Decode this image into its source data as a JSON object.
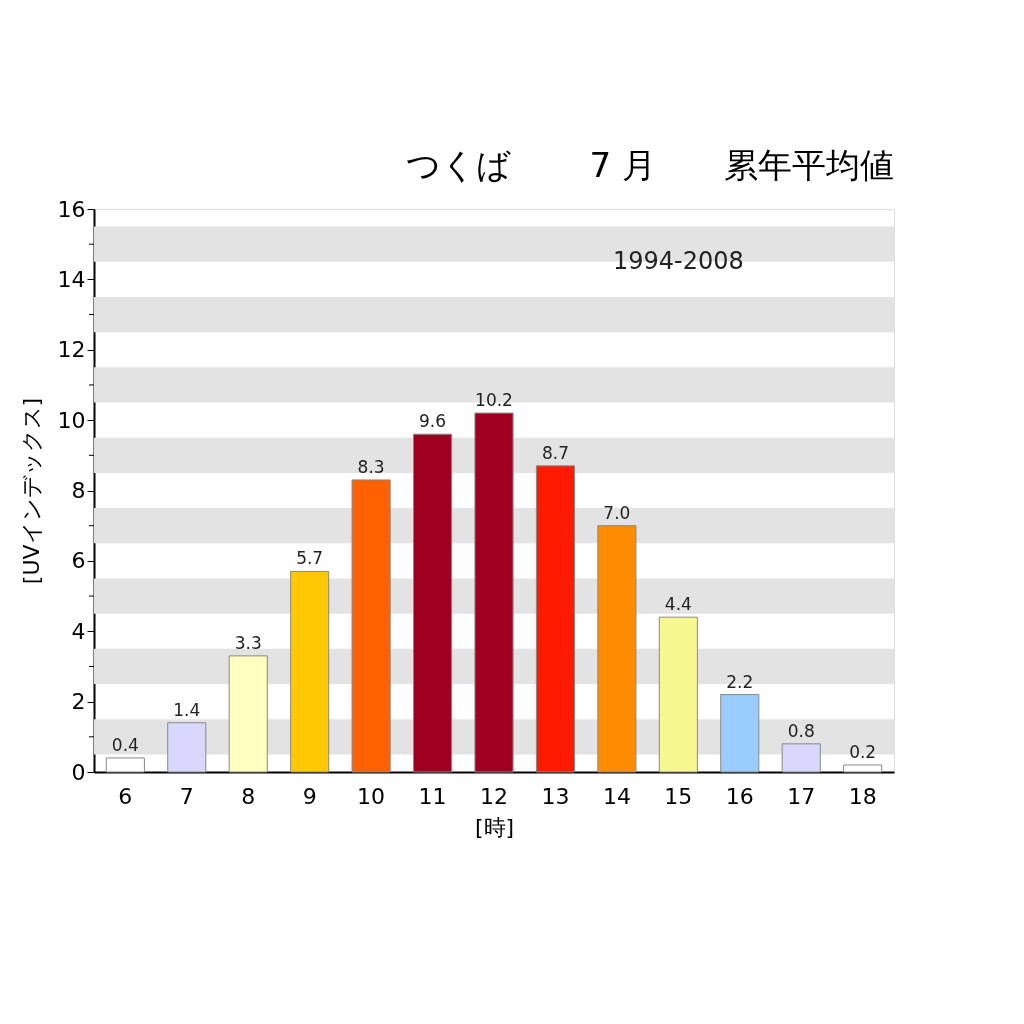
{
  "chart_data": {
    "type": "bar",
    "title": "つくば　　 7 月　　累年平均値",
    "xlabel": "[時]",
    "ylabel": "[UVインデックス]",
    "annotations": [
      {
        "text": "1994-2008",
        "x": "15",
        "y": 14.5
      }
    ],
    "categories": [
      "6",
      "7",
      "8",
      "9",
      "10",
      "11",
      "12",
      "13",
      "14",
      "15",
      "16",
      "17",
      "18"
    ],
    "values": [
      0.4,
      1.4,
      3.3,
      5.7,
      8.3,
      9.6,
      10.2,
      8.7,
      7.0,
      4.4,
      2.2,
      0.8,
      0.2
    ],
    "value_labels": [
      "0.4",
      "1.4",
      "3.3",
      "5.7",
      "8.3",
      "9.6",
      "10.2",
      "8.7",
      "7.0",
      "4.4",
      "2.2",
      "0.8",
      "0.2"
    ],
    "colors": [
      "#ffffff",
      "#d8d8ff",
      "#ffffc0",
      "#ffc800",
      "#ff6000",
      "#a00020",
      "#a00020",
      "#ff1a00",
      "#ff8c00",
      "#f8f890",
      "#99ccff",
      "#d8d8ff",
      "#ffffff"
    ],
    "ylim": [
      0,
      16
    ],
    "yticks": [
      0,
      {
        "value": 1,
        "label": null
      },
      2,
      {
        "value": 3,
        "label": null
      },
      4,
      {
        "value": 5,
        "label": null
      },
      6,
      {
        "value": 7,
        "label": null
      },
      8,
      {
        "value": 9,
        "label": null
      },
      10,
      {
        "value": 11,
        "label": null
      },
      12,
      {
        "value": 13,
        "label": null
      },
      14,
      {
        "value": 15,
        "label": null
      },
      16
    ],
    "bands": [
      {
        "axis": "y",
        "from": 0.5,
        "to": 1.5,
        "color": "#e3e3e3"
      },
      {
        "axis": "y",
        "from": 2.5,
        "to": 3.5,
        "color": "#e3e3e3"
      },
      {
        "axis": "y",
        "from": 4.5,
        "to": 5.5,
        "color": "#e3e3e3"
      },
      {
        "axis": "y",
        "from": 6.5,
        "to": 7.5,
        "color": "#e3e3e3"
      },
      {
        "axis": "y",
        "from": 8.5,
        "to": 9.5,
        "color": "#e3e3e3"
      },
      {
        "axis": "y",
        "from": 10.5,
        "to": 11.5,
        "color": "#e3e3e3"
      },
      {
        "axis": "y",
        "from": 12.5,
        "to": 13.5,
        "color": "#e3e3e3"
      },
      {
        "axis": "y",
        "from": 14.5,
        "to": 15.5,
        "color": "#e3e3e3"
      }
    ],
    "grid": false
  }
}
